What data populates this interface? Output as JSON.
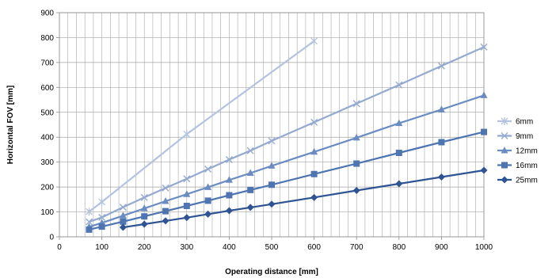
{
  "chart_data": {
    "type": "line",
    "title": "",
    "xlabel": "Operating distance [mm]",
    "ylabel": "Horizontal FOV [mm]",
    "xlim": [
      0,
      1000
    ],
    "ylim": [
      0,
      900
    ],
    "xticks": [
      "0",
      "100",
      "200",
      "300",
      "400",
      "500",
      "600",
      "700",
      "800",
      "900",
      "1000"
    ],
    "yticks": [
      "0",
      "100",
      "200",
      "300",
      "400",
      "500",
      "600",
      "700",
      "800",
      "900"
    ],
    "grid": true,
    "legend_position": "right",
    "series": [
      {
        "name": "6mm",
        "color": "#b3c3e0",
        "marker": "star",
        "points": [
          [
            70,
            101
          ],
          [
            100,
            140
          ],
          [
            300,
            412
          ],
          [
            600,
            786
          ]
        ]
      },
      {
        "name": "9mm",
        "color": "#93a9d0",
        "marker": "x",
        "points": [
          [
            70,
            60
          ],
          [
            100,
            78
          ],
          [
            150,
            119
          ],
          [
            200,
            158
          ],
          [
            250,
            196
          ],
          [
            300,
            233
          ],
          [
            350,
            272
          ],
          [
            400,
            310
          ],
          [
            450,
            346
          ],
          [
            500,
            385
          ],
          [
            600,
            460
          ],
          [
            700,
            535
          ],
          [
            800,
            610
          ],
          [
            900,
            686
          ],
          [
            1000,
            762
          ]
        ]
      },
      {
        "name": "12mm",
        "color": "#6b8cc2",
        "marker": "triangle",
        "points": [
          [
            70,
            40
          ],
          [
            100,
            56
          ],
          [
            150,
            85
          ],
          [
            200,
            114
          ],
          [
            250,
            143
          ],
          [
            300,
            171
          ],
          [
            350,
            199
          ],
          [
            400,
            228
          ],
          [
            450,
            256
          ],
          [
            500,
            285
          ],
          [
            600,
            341
          ],
          [
            700,
            398
          ],
          [
            800,
            456
          ],
          [
            900,
            511
          ],
          [
            1000,
            568
          ]
        ]
      },
      {
        "name": "16mm",
        "color": "#4e75b1",
        "marker": "square",
        "points": [
          [
            70,
            29
          ],
          [
            100,
            41
          ],
          [
            150,
            61
          ],
          [
            200,
            82
          ],
          [
            250,
            103
          ],
          [
            300,
            124
          ],
          [
            350,
            145
          ],
          [
            400,
            167
          ],
          [
            450,
            188
          ],
          [
            500,
            209
          ],
          [
            600,
            252
          ],
          [
            700,
            294
          ],
          [
            800,
            337
          ],
          [
            900,
            380
          ],
          [
            1000,
            421
          ]
        ]
      },
      {
        "name": "25mm",
        "color": "#2e5493",
        "marker": "diamond",
        "points": [
          [
            150,
            38
          ],
          [
            200,
            51
          ],
          [
            250,
            64
          ],
          [
            300,
            77
          ],
          [
            350,
            91
          ],
          [
            400,
            105
          ],
          [
            450,
            118
          ],
          [
            500,
            131
          ],
          [
            600,
            158
          ],
          [
            700,
            186
          ],
          [
            800,
            213
          ],
          [
            900,
            240
          ],
          [
            1000,
            267
          ]
        ]
      }
    ]
  }
}
